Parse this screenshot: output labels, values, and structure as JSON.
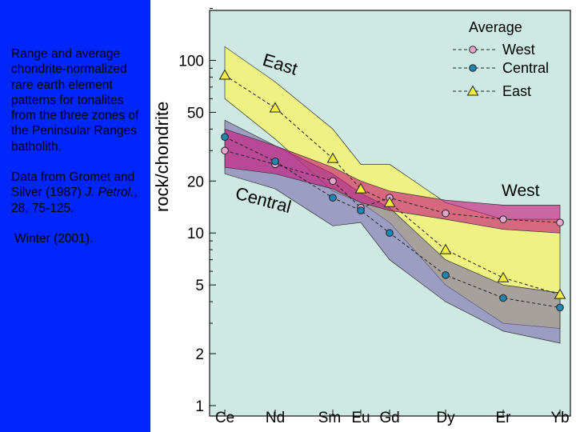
{
  "caption": {
    "line1": "Range and average chondrite-normalized rare earth element patterns for tonalites from the three zones of the Peninsular Ranges batholith.",
    "data_prefix": "Data from Gromet and Silver (1987)",
    "journal": "J. Petrol.",
    "data_suffix": ", 28, 75-125.",
    "credit": "Winter (2001)."
  },
  "colors": {
    "slide_background": "#0026ff",
    "plot_background": "#cde9e1",
    "east_field": "#eef27d",
    "central_field": "#7c6fae",
    "west_field": "#c8157a",
    "west_marker": "#e8a6cf",
    "central_marker": "#1f86b2",
    "east_marker": "#f2ee3c"
  },
  "chart_data": {
    "type": "line",
    "xlabel": "",
    "ylabel": "rock/chondrite",
    "y_scale": "log",
    "ylim": [
      1,
      200
    ],
    "categories": [
      "Ce",
      "Nd",
      "Sm",
      "Eu",
      "Gd",
      "Dy",
      "Er",
      "Yb"
    ],
    "y_ticks": [
      1,
      2,
      5,
      10,
      20,
      50,
      100
    ],
    "legend": {
      "title": "Average",
      "position": "top-right",
      "entries": [
        "West",
        "Central",
        "East"
      ]
    },
    "series": [
      {
        "name": "West",
        "values": [
          30,
          25,
          20,
          14,
          16,
          13,
          12,
          11.5
        ]
      },
      {
        "name": "Central",
        "values": [
          36,
          26,
          16,
          13.5,
          10,
          5.7,
          4.2,
          3.7
        ]
      },
      {
        "name": "East",
        "values": [
          82,
          53,
          27,
          18,
          15,
          8,
          5.5,
          4.4
        ]
      }
    ],
    "ranges": [
      {
        "name": "East",
        "upper": [
          120,
          75,
          40,
          25,
          25,
          15,
          12,
          12
        ],
        "lower": [
          60,
          35,
          17.5,
          15,
          11.5,
          5,
          3,
          2.8
        ]
      },
      {
        "name": "Central",
        "upper": [
          45,
          32,
          22,
          17,
          14,
          7,
          5,
          4.5
        ],
        "lower": [
          22,
          18,
          11,
          11.5,
          7,
          4,
          2.7,
          2.3
        ]
      },
      {
        "name": "West",
        "upper": [
          40,
          32,
          24,
          20,
          17.5,
          15.5,
          14.5,
          14.5
        ],
        "lower": [
          24,
          22,
          18,
          15,
          13.5,
          12,
          10.5,
          10
        ]
      }
    ],
    "annotations": [
      "East",
      "Central",
      "West"
    ]
  }
}
